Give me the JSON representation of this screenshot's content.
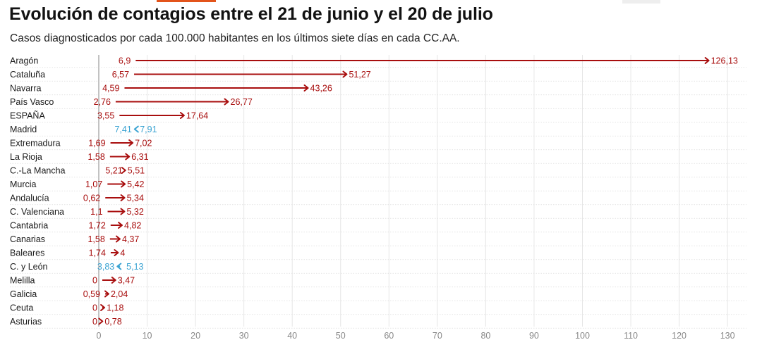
{
  "title": "Evolución de contagios entre el 21 de junio y el 20 de julio",
  "subtitle": "Casos diagnosticados por cada 100.000 habitantes en los últimos siete días en cada CC.AA.",
  "colors": {
    "increase": "#a80e0e",
    "decrease": "#3aa3d2",
    "accent": "#e3541b",
    "grid": "#e6e6e6"
  },
  "chart_data": {
    "type": "arrow",
    "title": "Evolución de contagios entre el 21 de junio y el 20 de julio",
    "subtitle": "Casos diagnosticados por cada 100.000 habitantes en los últimos siete días en cada CC.AA.",
    "xlim": [
      0,
      132
    ],
    "xticks": [
      0,
      10,
      20,
      30,
      40,
      50,
      60,
      70,
      80,
      90,
      100,
      110,
      120,
      130
    ],
    "grid": true,
    "rows": [
      {
        "region": "Aragón",
        "start": 6.9,
        "end": 126.13,
        "start_label": "6,9",
        "end_label": "126,13"
      },
      {
        "region": "Cataluña",
        "start": 6.57,
        "end": 51.27,
        "start_label": "6,57",
        "end_label": "51,27"
      },
      {
        "region": "Navarra",
        "start": 4.59,
        "end": 43.26,
        "start_label": "4,59",
        "end_label": "43,26"
      },
      {
        "region": "País Vasco",
        "start": 2.76,
        "end": 26.77,
        "start_label": "2,76",
        "end_label": "26,77"
      },
      {
        "region": "ESPAÑA",
        "start": 3.55,
        "end": 17.64,
        "start_label": "3,55",
        "end_label": "17,64"
      },
      {
        "region": "Madrid",
        "start": 7.91,
        "end": 7.41,
        "start_label": "7,91",
        "end_label": "7,41"
      },
      {
        "region": "Extremadura",
        "start": 1.69,
        "end": 7.02,
        "start_label": "1,69",
        "end_label": "7,02"
      },
      {
        "region": "La Rioja",
        "start": 1.58,
        "end": 6.31,
        "start_label": "1,58",
        "end_label": "6,31"
      },
      {
        "region": "C.-La Mancha",
        "start": 5.21,
        "end": 5.51,
        "start_label": "5,21",
        "end_label": "5,51"
      },
      {
        "region": "Murcia",
        "start": 1.07,
        "end": 5.42,
        "start_label": "1,07",
        "end_label": "5,42"
      },
      {
        "region": "Andalucía",
        "start": 0.62,
        "end": 5.34,
        "start_label": "0,62",
        "end_label": "5,34"
      },
      {
        "region": "C. Valenciana",
        "start": 1.1,
        "end": 5.32,
        "start_label": "1,1",
        "end_label": "5,32"
      },
      {
        "region": "Cantabria",
        "start": 1.72,
        "end": 4.82,
        "start_label": "1,72",
        "end_label": "4,82"
      },
      {
        "region": "Canarias",
        "start": 1.58,
        "end": 4.37,
        "start_label": "1,58",
        "end_label": "4,37"
      },
      {
        "region": "Baleares",
        "start": 1.74,
        "end": 4,
        "start_label": "1,74",
        "end_label": "4"
      },
      {
        "region": "C. y León",
        "start": 5.13,
        "end": 3.83,
        "start_label": "5,13",
        "end_label": "3,83"
      },
      {
        "region": "Melilla",
        "start": 0,
        "end": 3.47,
        "start_label": "0",
        "end_label": "3,47"
      },
      {
        "region": "Galicia",
        "start": 0.59,
        "end": 2.04,
        "start_label": "0,59",
        "end_label": "2,04"
      },
      {
        "region": "Ceuta",
        "start": 0,
        "end": 1.18,
        "start_label": "0",
        "end_label": "1,18"
      },
      {
        "region": "Asturias",
        "start": 0,
        "end": 0.78,
        "start_label": "0",
        "end_label": "0,78"
      }
    ]
  }
}
